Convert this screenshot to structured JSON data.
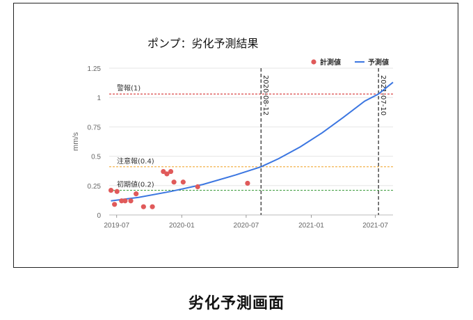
{
  "caption": "劣化予測画面",
  "colors": {
    "measured": "#e05a5a",
    "predicted": "#3b76e1",
    "warning": "#d11a1a",
    "caution": "#f0a020",
    "initial": "#3a9a3a",
    "marker": "#222222"
  },
  "chart_data": {
    "type": "scatter",
    "title": "ポンプ：劣化予測結果",
    "ylabel": "mm/s",
    "xlabel": "",
    "ylim": [
      0,
      1.25
    ],
    "xlim": [
      "2019-06-10",
      "2021-08-20"
    ],
    "yticks": [
      0,
      0.25,
      0.5,
      0.75,
      1,
      1.25
    ],
    "ytick_labels": [
      "0",
      "0.25",
      "0.5",
      "0.75",
      "1",
      "1.25"
    ],
    "xticks": [
      "2019-07-01",
      "2020-01-01",
      "2020-07-01",
      "2021-01-01",
      "2021-07-01"
    ],
    "xtick_labels": [
      "2019-07",
      "2020-01",
      "2020-07",
      "2021-01",
      "2021-07"
    ],
    "grid": true,
    "legend_position": "top-right",
    "series": [
      {
        "name": "計測値",
        "kind": "scatter",
        "color": "#e05a5a",
        "points": [
          [
            "2019-06-15",
            0.21
          ],
          [
            "2019-06-25",
            0.09
          ],
          [
            "2019-07-02",
            0.2
          ],
          [
            "2019-07-15",
            0.12
          ],
          [
            "2019-07-25",
            0.12
          ],
          [
            "2019-08-10",
            0.12
          ],
          [
            "2019-08-25",
            0.18
          ],
          [
            "2019-09-15",
            0.07
          ],
          [
            "2019-10-10",
            0.07
          ],
          [
            "2019-11-10",
            0.37
          ],
          [
            "2019-11-20",
            0.35
          ],
          [
            "2019-12-01",
            0.37
          ],
          [
            "2019-12-10",
            0.28
          ],
          [
            "2020-01-05",
            0.28
          ],
          [
            "2020-02-15",
            0.24
          ],
          [
            "2020-07-05",
            0.27
          ]
        ]
      },
      {
        "name": "予測値",
        "kind": "line",
        "color": "#3b76e1",
        "points": [
          [
            "2019-06-15",
            0.12
          ],
          [
            "2019-09-01",
            0.15
          ],
          [
            "2019-12-01",
            0.2
          ],
          [
            "2020-03-01",
            0.26
          ],
          [
            "2020-06-01",
            0.34
          ],
          [
            "2020-08-12",
            0.41
          ],
          [
            "2020-10-01",
            0.48
          ],
          [
            "2020-12-01",
            0.58
          ],
          [
            "2021-02-01",
            0.7
          ],
          [
            "2021-04-01",
            0.83
          ],
          [
            "2021-06-01",
            0.97
          ],
          [
            "2021-07-10",
            1.03
          ],
          [
            "2021-08-20",
            1.13
          ]
        ]
      }
    ],
    "reference_lines": [
      {
        "label": "警報(1)",
        "y": 1.03,
        "color": "#d11a1a"
      },
      {
        "label": "注意報(0.4)",
        "y": 0.41,
        "color": "#f0a020"
      },
      {
        "label": "初期値(0.2)",
        "y": 0.21,
        "color": "#3a9a3a"
      }
    ],
    "vertical_markers": [
      {
        "label": "2020-08-12",
        "x": "2020-08-12"
      },
      {
        "label": "2021-07-10",
        "x": "2021-07-10"
      }
    ]
  }
}
